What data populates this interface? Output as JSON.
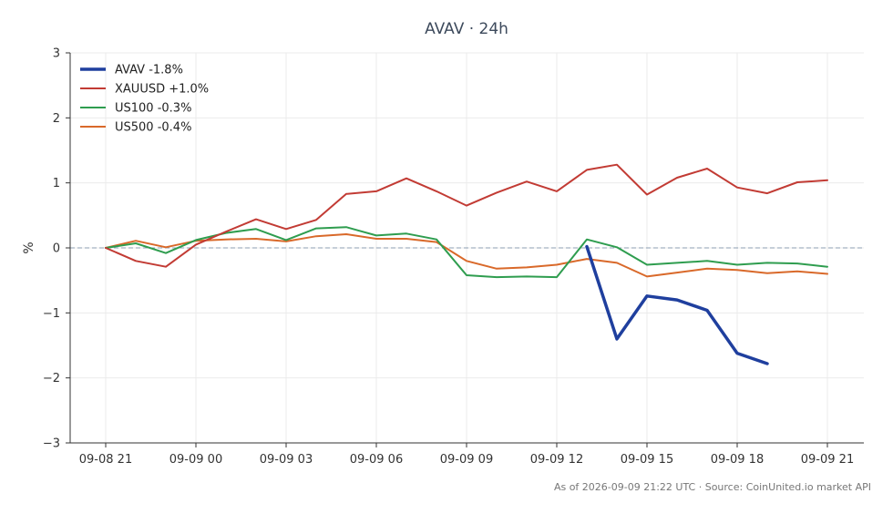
{
  "chart_data": {
    "type": "line",
    "title": "AVAV · 24h",
    "xlabel": "",
    "ylabel": "%",
    "ylim": [
      -3,
      3
    ],
    "yticks": [
      3,
      2,
      1,
      0,
      -1,
      -2,
      -3
    ],
    "ytick_labels": [
      "3",
      "2",
      "1",
      "0",
      "−1",
      "−2",
      "−3"
    ],
    "x_hours_labels": [
      "09-08 21",
      "09-09 00",
      "09-09 03",
      "09-09 06",
      "09-09 09",
      "09-09 12",
      "09-09 15",
      "09-09 18",
      "09-09 21"
    ],
    "x": [
      "09-08 21",
      "09-08 22",
      "09-08 23",
      "09-09 00",
      "09-09 01",
      "09-09 02",
      "09-09 03",
      "09-09 04",
      "09-09 05",
      "09-09 06",
      "09-09 07",
      "09-09 08",
      "09-09 09",
      "09-09 10",
      "09-09 11",
      "09-09 12",
      "09-09 13",
      "09-09 14",
      "09-09 15",
      "09-09 16",
      "09-09 17",
      "09-09 18",
      "09-09 19",
      "09-09 20",
      "09-09 21"
    ],
    "grid": true,
    "zero_line": true,
    "legend_position": "top-left",
    "series": [
      {
        "name": "AVAV -1.8%",
        "color": "#1f3f9e",
        "width": 3.5,
        "values": [
          null,
          null,
          null,
          null,
          null,
          null,
          null,
          null,
          null,
          null,
          null,
          null,
          null,
          null,
          null,
          null,
          0.02,
          -1.4,
          -0.74,
          -0.8,
          -0.96,
          -1.62,
          -1.78,
          null,
          null
        ]
      },
      {
        "name": "XAUUSD +1.0%",
        "color": "#c23b34",
        "width": 2,
        "values": [
          0.0,
          -0.2,
          -0.29,
          0.05,
          0.25,
          0.44,
          0.29,
          0.43,
          0.83,
          0.87,
          1.07,
          0.87,
          0.65,
          0.85,
          1.02,
          0.87,
          1.2,
          1.28,
          0.82,
          1.08,
          1.22,
          0.93,
          0.84,
          1.01,
          1.04
        ]
      },
      {
        "name": "US100 -0.3%",
        "color": "#2f9d4f",
        "width": 2,
        "values": [
          0.0,
          0.07,
          -0.08,
          0.12,
          0.23,
          0.29,
          0.12,
          0.3,
          0.32,
          0.19,
          0.22,
          0.13,
          -0.42,
          -0.45,
          -0.44,
          -0.45,
          0.13,
          0.01,
          -0.26,
          -0.23,
          -0.2,
          -0.26,
          -0.23,
          -0.24,
          -0.29
        ]
      },
      {
        "name": "US500 -0.4%",
        "color": "#d9692a",
        "width": 2,
        "values": [
          0.0,
          0.11,
          0.01,
          0.11,
          0.13,
          0.14,
          0.1,
          0.18,
          0.21,
          0.14,
          0.14,
          0.09,
          -0.2,
          -0.32,
          -0.3,
          -0.26,
          -0.17,
          -0.23,
          -0.44,
          -0.38,
          -0.32,
          -0.34,
          -0.39,
          -0.36,
          -0.4
        ]
      }
    ]
  },
  "footer": {
    "note": "As of 2026-09-09 21:22 UTC · Source: CoinUnited.io market API"
  },
  "colors": {
    "axis": "#333333",
    "grid": "#ebebeb",
    "zero_line": "#8c9fb3",
    "title": "#3d4a5c",
    "footer": "#777777"
  }
}
